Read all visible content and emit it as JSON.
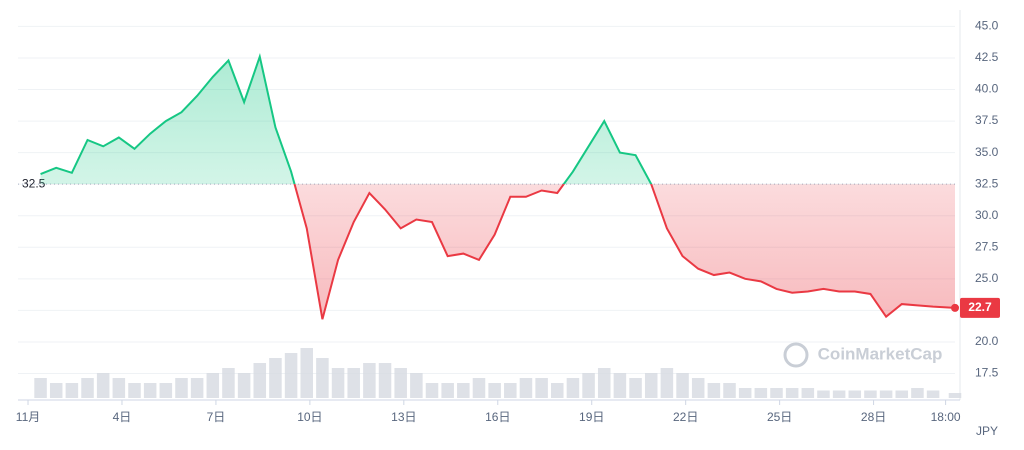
{
  "chart_data": {
    "type": "line",
    "x": [
      1.4,
      1.9,
      2.4,
      2.9,
      3.4,
      3.9,
      4.4,
      4.9,
      5.4,
      5.9,
      6.4,
      6.9,
      7.4,
      7.9,
      8.4,
      8.9,
      9.4,
      9.9,
      10.4,
      10.9,
      11.4,
      11.9,
      12.4,
      12.9,
      13.4,
      13.9,
      14.4,
      14.9,
      15.4,
      15.9,
      16.4,
      16.9,
      17.4,
      17.9,
      18.4,
      18.9,
      19.4,
      19.9,
      20.4,
      20.9,
      21.4,
      21.9,
      22.4,
      22.9,
      23.4,
      23.9,
      24.4,
      24.9,
      25.4,
      25.9,
      26.4,
      26.9,
      27.4,
      27.9,
      28.4,
      28.9,
      29.4,
      29.9,
      30.6
    ],
    "values": [
      33.3,
      33.8,
      33.4,
      36.0,
      35.5,
      36.2,
      35.3,
      36.5,
      37.5,
      38.2,
      39.5,
      41.0,
      42.3,
      39.0,
      42.6,
      37.0,
      33.5,
      29.0,
      21.8,
      26.5,
      29.5,
      31.8,
      30.5,
      29.0,
      29.7,
      29.5,
      26.8,
      27.0,
      26.5,
      28.5,
      31.5,
      31.5,
      32.0,
      31.8,
      33.5,
      35.5,
      37.5,
      35.0,
      34.8,
      32.5,
      29.0,
      26.8,
      25.8,
      25.3,
      25.5,
      25.0,
      24.8,
      24.2,
      23.9,
      24.0,
      24.2,
      24.0,
      24.0,
      23.8,
      22.0,
      23.0,
      22.9,
      22.8,
      22.7
    ],
    "volume": [
      4,
      3,
      3,
      4,
      5,
      4,
      3,
      3,
      3,
      4,
      4,
      5,
      6,
      5,
      7,
      8,
      9,
      10,
      8,
      6,
      6,
      7,
      7,
      6,
      5,
      3,
      3,
      3,
      4,
      3,
      3,
      4,
      4,
      3,
      4,
      5,
      6,
      5,
      4,
      5,
      6,
      5,
      4,
      3,
      3,
      2,
      2,
      2,
      2,
      2,
      1.5,
      1.5,
      1.5,
      1.5,
      1.5,
      1.5,
      2,
      1.5,
      1
    ],
    "volume_lim": [
      0,
      12
    ],
    "baseline": 32.5,
    "colors": {
      "up": "#16c784",
      "down": "#ea3943"
    },
    "xlim": [
      0.68,
      30.6
    ],
    "xticks": [
      {
        "value": 1,
        "label": "11月"
      },
      {
        "value": 4,
        "label": "4日"
      },
      {
        "value": 7,
        "label": "7日"
      },
      {
        "value": 10,
        "label": "10日"
      },
      {
        "value": 13,
        "label": "13日"
      },
      {
        "value": 16,
        "label": "16日"
      },
      {
        "value": 19,
        "label": "19日"
      },
      {
        "value": 22,
        "label": "22日"
      },
      {
        "value": 25,
        "label": "25日"
      },
      {
        "value": 28,
        "label": "28日"
      },
      {
        "value": 30.3,
        "label": "18:00"
      }
    ],
    "ylim": [
      15.4,
      46.3
    ],
    "yticks": [
      17.5,
      {
        "value": 20,
        "label": "20.0"
      },
      22.5,
      {
        "value": 25,
        "label": "25.0"
      },
      27.5,
      {
        "value": 30,
        "label": "30.0"
      },
      32.5,
      {
        "value": 35,
        "label": "35.0"
      },
      37.5,
      {
        "value": 40,
        "label": "40.0"
      },
      42.5,
      {
        "value": 45,
        "label": "45.0"
      }
    ],
    "grid": true,
    "currency": "JPY",
    "watermark": "CoinMarketCap"
  }
}
